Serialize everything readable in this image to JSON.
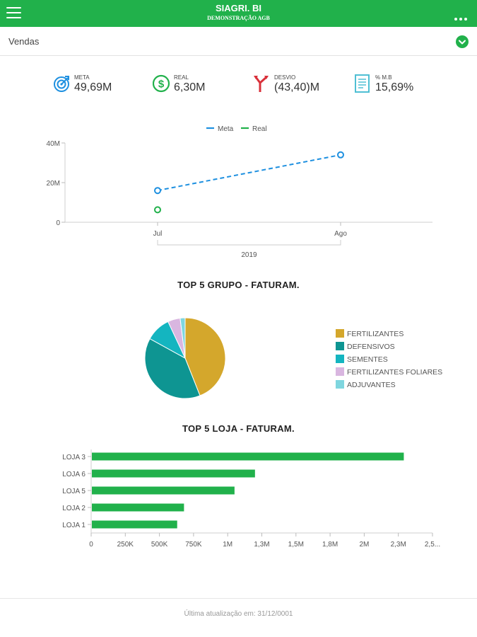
{
  "header": {
    "title": "SIAGRI. BI",
    "subtitle": "DEMONSTRAÇÃO AGB",
    "menu_icon": "hamburger-menu-icon",
    "more_icon": "more-dots-icon",
    "background_color": "#21b14b"
  },
  "subheader": {
    "label": "Vendas",
    "toggle_icon": "chevron-down-circle-icon"
  },
  "kpis": [
    {
      "label": "META",
      "value": "49,69M",
      "icon": "target-icon",
      "color": "#1e90e0"
    },
    {
      "label": "REAL",
      "value": "6,30M",
      "icon": "dollar-circle-icon",
      "color": "#21b14b"
    },
    {
      "label": "DESVIO",
      "value": "(43,40)M",
      "icon": "split-arrows-icon",
      "color": "#d9303a"
    },
    {
      "label": "% M.B",
      "value": "15,69%",
      "icon": "document-icon",
      "color": "#4fbfd4"
    }
  ],
  "chart_data": [
    {
      "type": "line",
      "x": [
        "Jul",
        "Ago"
      ],
      "x_group_label": "2019",
      "y_ticks": [
        "0",
        "20M",
        "40M"
      ],
      "ylim": [
        0,
        40
      ],
      "y_unit": "M",
      "series": [
        {
          "name": "Meta",
          "color": "#1e90e0",
          "style": "dashed",
          "values": [
            16,
            34
          ]
        },
        {
          "name": "Real",
          "color": "#21b14b",
          "style": "solid",
          "values": [
            6.3,
            null
          ]
        }
      ],
      "legend": "top-center"
    },
    {
      "type": "pie",
      "title": "TOP 5 GRUPO - FATURAM.",
      "slices": [
        {
          "label": "FERTILIZANTES",
          "value": 44,
          "color": "#d4a72c"
        },
        {
          "label": "DEFENSIVOS",
          "value": 39,
          "color": "#0e9592"
        },
        {
          "label": "SEMENTES",
          "value": 10,
          "color": "#14b5c0"
        },
        {
          "label": "FERTILIZANTES FOLIARES",
          "value": 5,
          "color": "#d9b6e0"
        },
        {
          "label": "ADJUVANTES",
          "value": 2,
          "color": "#7fd6df"
        }
      ],
      "legend": "right"
    },
    {
      "type": "bar",
      "orientation": "horizontal",
      "title": "TOP 5 LOJA - FATURAM.",
      "categories": [
        "LOJA 3",
        "LOJA 6",
        "LOJA 5",
        "LOJA 2",
        "LOJA 1"
      ],
      "values": [
        2290000,
        1200000,
        1050000,
        680000,
        630000
      ],
      "color": "#21b14b",
      "x_ticks": [
        "0",
        "250K",
        "500K",
        "750K",
        "1M",
        "1,3M",
        "1,5M",
        "1,8M",
        "2M",
        "2,3M",
        "2,5..."
      ],
      "xlim": [
        0,
        2500000
      ]
    }
  ],
  "footer": {
    "text": "Última atualização em: 31/12/0001"
  }
}
